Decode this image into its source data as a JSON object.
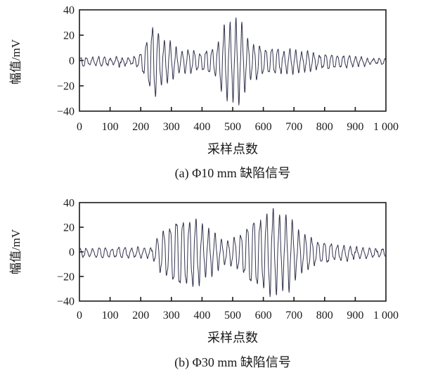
{
  "figure": {
    "background": "#ffffff",
    "line_color": "#32324e",
    "axis_color": "#1a1a1a",
    "text_color": "#1a1a1a"
  },
  "chart_data": [
    {
      "type": "line",
      "panel": "a",
      "caption": "(a) Φ10 mm 缺陷信号",
      "xlabel": "采样点数",
      "ylabel": "幅值/mV",
      "xlim": [
        0,
        1000
      ],
      "ylim": [
        -40,
        40
      ],
      "grid": false,
      "x_tick_values": [
        0,
        100,
        200,
        300,
        400,
        500,
        600,
        700,
        800,
        900,
        1000
      ],
      "x_tick_labels": [
        "0",
        "100",
        "200",
        "300",
        "400",
        "500",
        "600",
        "700",
        "800",
        "900",
        "1 000"
      ],
      "y_tick_values": [
        40,
        20,
        0,
        -20,
        -40
      ],
      "y_tick_labels": [
        "40",
        "20",
        "0",
        "−20",
        "−40"
      ],
      "signal": {
        "description": "Ultrasonic A-scan: noise floor ±3 mV up to ~190 samples; first echo burst 200–350 peaking ≈25 mV near sample 245; ring-down ≈8 mV between 350–430; second echo burst 440–560 peaking ≈32 mV near sample 505; oscillating tail decaying to ≈2 mV at sample 1000",
        "carrier_period": 19.5,
        "phase": 0.4,
        "ripple_period": 6.3,
        "ripple_gain": 0.16,
        "am_period": 57,
        "am_gain": 0.1,
        "jitter": 0.9,
        "offset": -0.8,
        "seed": 13,
        "envelope_mV": [
          [
            0,
            3
          ],
          [
            170,
            3
          ],
          [
            190,
            3.5
          ],
          [
            200,
            6
          ],
          [
            210,
            12
          ],
          [
            222,
            18
          ],
          [
            232,
            22
          ],
          [
            242,
            25
          ],
          [
            252,
            24
          ],
          [
            262,
            20
          ],
          [
            275,
            17
          ],
          [
            290,
            14
          ],
          [
            305,
            12
          ],
          [
            320,
            10
          ],
          [
            335,
            8.5
          ],
          [
            350,
            8
          ],
          [
            365,
            8.5
          ],
          [
            380,
            7.5
          ],
          [
            395,
            7
          ],
          [
            410,
            7.5
          ],
          [
            425,
            8.5
          ],
          [
            440,
            11
          ],
          [
            452,
            15
          ],
          [
            465,
            21
          ],
          [
            478,
            26
          ],
          [
            490,
            29
          ],
          [
            505,
            32
          ],
          [
            516,
            30
          ],
          [
            528,
            26
          ],
          [
            540,
            21
          ],
          [
            555,
            16
          ],
          [
            570,
            13
          ],
          [
            585,
            11.5
          ],
          [
            600,
            10
          ],
          [
            630,
            9.5
          ],
          [
            660,
            9
          ],
          [
            690,
            8.5
          ],
          [
            720,
            7.5
          ],
          [
            750,
            7
          ],
          [
            780,
            6
          ],
          [
            820,
            5
          ],
          [
            860,
            4.5
          ],
          [
            900,
            3.5
          ],
          [
            940,
            2.5
          ],
          [
            1000,
            1.5
          ]
        ]
      }
    },
    {
      "type": "line",
      "panel": "b",
      "caption": "(b) Φ30 mm 缺陷信号",
      "xlabel": "采样点数",
      "ylabel": "幅值/mV",
      "xlim": [
        0,
        1000
      ],
      "ylim": [
        -40,
        40
      ],
      "grid": false,
      "x_tick_values": [
        0,
        100,
        200,
        300,
        400,
        500,
        600,
        700,
        800,
        900,
        1000
      ],
      "x_tick_labels": [
        "0",
        "100",
        "200",
        "300",
        "400",
        "500",
        "600",
        "700",
        "800",
        "900",
        "1 000"
      ],
      "y_tick_values": [
        40,
        20,
        0,
        -20,
        -40
      ],
      "y_tick_labels": [
        "40",
        "20",
        "0",
        "−20",
        "−40"
      ],
      "signal": {
        "description": "Ultrasonic A-scan: noise floor ±3.5 mV up to ~230 samples; first echo burst 240–460 peaking ≈27 mV near sample 350; dip ≈9 mV near 480; second echo burst 500–770 peaking ≈31 mV near sample 635; oscillating tail decaying to ≈3 mV at sample 1000",
        "carrier_period": 21,
        "phase": 1.1,
        "ripple_period": 6.8,
        "ripple_gain": 0.16,
        "am_period": 61,
        "am_gain": 0.08,
        "jitter": 0.9,
        "offset": -0.8,
        "seed": 29,
        "envelope_mV": [
          [
            0,
            3.5
          ],
          [
            210,
            3.5
          ],
          [
            228,
            4
          ],
          [
            240,
            6
          ],
          [
            252,
            10
          ],
          [
            264,
            15
          ],
          [
            278,
            19
          ],
          [
            292,
            22
          ],
          [
            306,
            24
          ],
          [
            320,
            25.5
          ],
          [
            335,
            26.5
          ],
          [
            350,
            27
          ],
          [
            365,
            26
          ],
          [
            380,
            24.5
          ],
          [
            395,
            22.5
          ],
          [
            410,
            20
          ],
          [
            425,
            17
          ],
          [
            440,
            14
          ],
          [
            455,
            12
          ],
          [
            470,
            10
          ],
          [
            485,
            9
          ],
          [
            500,
            10
          ],
          [
            515,
            13
          ],
          [
            530,
            17
          ],
          [
            545,
            21
          ],
          [
            560,
            24
          ],
          [
            575,
            26.5
          ],
          [
            590,
            28
          ],
          [
            605,
            29.5
          ],
          [
            620,
            30.5
          ],
          [
            635,
            31
          ],
          [
            650,
            30
          ],
          [
            665,
            28.5
          ],
          [
            680,
            26
          ],
          [
            695,
            22.5
          ],
          [
            710,
            19
          ],
          [
            725,
            16
          ],
          [
            740,
            13.5
          ],
          [
            755,
            11.5
          ],
          [
            775,
            9.5
          ],
          [
            800,
            8
          ],
          [
            830,
            6.5
          ],
          [
            860,
            5.5
          ],
          [
            900,
            4.5
          ],
          [
            940,
            3.5
          ],
          [
            1000,
            3
          ]
        ]
      }
    }
  ]
}
